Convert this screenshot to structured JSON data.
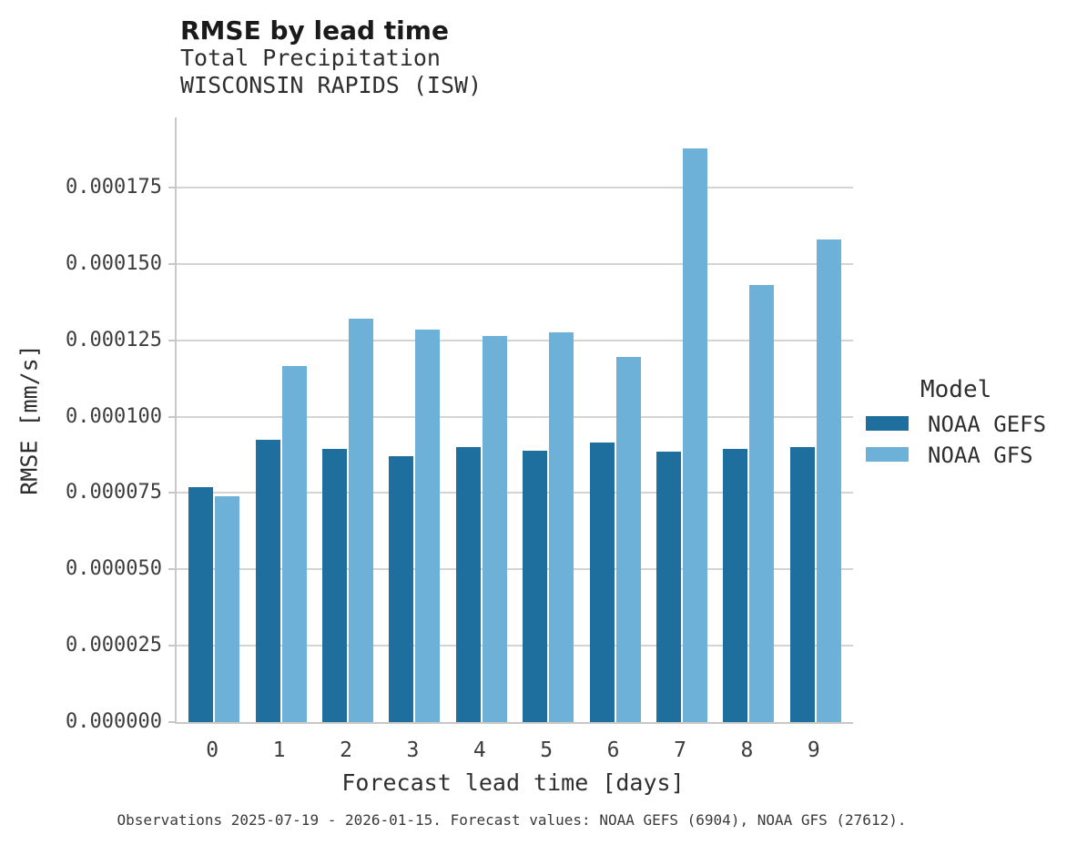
{
  "header": {
    "title": "RMSE by lead time",
    "subtitle_line1": "Total Precipitation",
    "subtitle_line2": "WISCONSIN RAPIDS (ISW)"
  },
  "legend": {
    "title": "Model",
    "items": [
      {
        "label": "NOAA GEFS",
        "color": "#1e6e9e"
      },
      {
        "label": "NOAA GFS",
        "color": "#6db1d8"
      }
    ]
  },
  "footer": {
    "caption": "Observations 2025-07-19 - 2026-01-15. Forecast values: NOAA GEFS (6904), NOAA GFS (27612)."
  },
  "chart_data": {
    "type": "bar",
    "title": "RMSE by lead time",
    "subtitle": [
      "Total Precipitation",
      "WISCONSIN RAPIDS (ISW)"
    ],
    "xlabel": "Forecast lead time [days]",
    "ylabel": "RMSE [mm/s]",
    "categories": [
      "0",
      "1",
      "2",
      "3",
      "4",
      "5",
      "6",
      "7",
      "8",
      "9"
    ],
    "series": [
      {
        "name": "NOAA GEFS",
        "color": "#1e6e9e",
        "values": [
          7.7e-05,
          9.25e-05,
          8.95e-05,
          8.7e-05,
          9e-05,
          8.9e-05,
          9.15e-05,
          8.85e-05,
          8.95e-05,
          9e-05
        ]
      },
      {
        "name": "NOAA GFS",
        "color": "#6db1d8",
        "values": [
          7.4e-05,
          0.0001165,
          0.000132,
          0.0001285,
          0.0001265,
          0.0001275,
          0.0001195,
          0.000188,
          0.000143,
          0.000158
        ]
      }
    ],
    "ylim": [
      0,
      0.000198
    ],
    "yticks": [
      0,
      2.5e-05,
      5e-05,
      7.5e-05,
      0.0001,
      0.000125,
      0.00015,
      0.000175
    ],
    "ytick_decimals": 6,
    "grid": "horizontal",
    "grid_color": "#d4d4d4",
    "spine_color": "#c8c8c8",
    "legend_position": "right"
  }
}
